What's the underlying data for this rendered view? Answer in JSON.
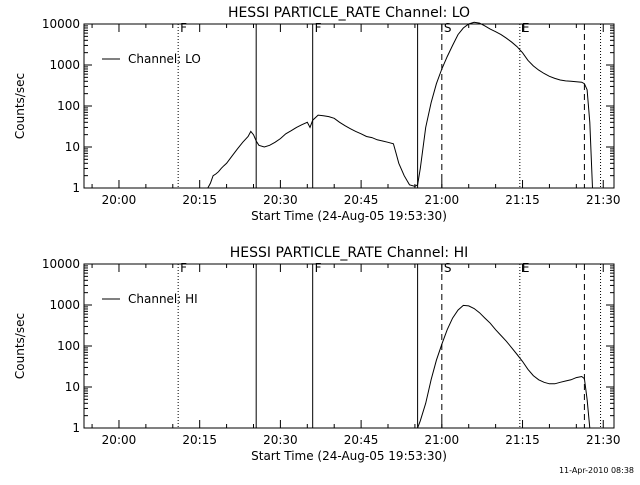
{
  "timestamp": "11-Apr-2010 08:38",
  "chart_data": [
    {
      "type": "line",
      "title": "HESSI PARTICLE_RATE Channel: LO",
      "xlabel": "Start Time (24-Aug-05 19:53:30)",
      "ylabel": "Counts/sec",
      "y_scale": "log",
      "xlim": [
        "19:53:30",
        "21:32:00"
      ],
      "ylim": [
        1,
        10000
      ],
      "x_ticks": [
        "20:00",
        "20:15",
        "20:30",
        "20:45",
        "21:00",
        "21:15",
        "21:30"
      ],
      "y_ticks": [
        "1",
        "10",
        "100",
        "1000",
        "10000"
      ],
      "legend": {
        "position": "top-left",
        "entries": [
          "Channel: LO"
        ]
      },
      "markers": [
        {
          "label": "F",
          "time": "20:11:00",
          "style": "dotted"
        },
        {
          "label": "",
          "time": "20:25:30",
          "style": "solid"
        },
        {
          "label": "F",
          "time": "20:36:00",
          "style": "solid"
        },
        {
          "label": "",
          "time": "20:55:30",
          "style": "solid"
        },
        {
          "label": "S",
          "time": "21:00:00",
          "style": "dashed"
        },
        {
          "label": "E",
          "time": "21:14:30",
          "style": "dotted"
        },
        {
          "label": "",
          "time": "21:26:30",
          "style": "dashed"
        },
        {
          "label": "",
          "time": "21:29:30",
          "style": "dotted"
        }
      ],
      "series": [
        {
          "name": "Channel: LO",
          "points": [
            [
              "20:16:30",
              1
            ],
            [
              "20:17:00",
              1.3
            ],
            [
              "20:17:30",
              2
            ],
            [
              "20:18:00",
              2.2
            ],
            [
              "20:18:30",
              2.5
            ],
            [
              "20:19:00",
              3
            ],
            [
              "20:19:30",
              3.5
            ],
            [
              "20:20:00",
              4
            ],
            [
              "20:21:00",
              6
            ],
            [
              "20:22:00",
              9
            ],
            [
              "20:23:00",
              13
            ],
            [
              "20:24:00",
              18
            ],
            [
              "20:24:30",
              24
            ],
            [
              "20:25:00",
              20
            ],
            [
              "20:25:30",
              14
            ],
            [
              "20:26:00",
              11
            ],
            [
              "20:27:00",
              10
            ],
            [
              "20:28:00",
              11
            ],
            [
              "20:29:00",
              13
            ],
            [
              "20:30:00",
              16
            ],
            [
              "20:31:00",
              21
            ],
            [
              "20:32:00",
              25
            ],
            [
              "20:33:00",
              30
            ],
            [
              "20:34:00",
              35
            ],
            [
              "20:35:00",
              40
            ],
            [
              "20:35:30",
              30
            ],
            [
              "20:36:00",
              45
            ],
            [
              "20:37:00",
              60
            ],
            [
              "20:38:00",
              58
            ],
            [
              "20:39:00",
              55
            ],
            [
              "20:40:00",
              50
            ],
            [
              "20:41:00",
              40
            ],
            [
              "20:42:00",
              33
            ],
            [
              "20:43:00",
              28
            ],
            [
              "20:44:00",
              24
            ],
            [
              "20:45:00",
              21
            ],
            [
              "20:46:00",
              18
            ],
            [
              "20:47:00",
              17
            ],
            [
              "20:48:00",
              15
            ],
            [
              "20:49:00",
              14
            ],
            [
              "20:50:00",
              13
            ],
            [
              "20:51:00",
              12
            ],
            [
              "20:51:30",
              7
            ],
            [
              "20:52:00",
              4
            ],
            [
              "20:53:00",
              2
            ],
            [
              "20:54:00",
              1.2
            ],
            [
              "20:55:00",
              1.1
            ],
            [
              "20:55:30",
              1.2
            ],
            [
              "20:56:00",
              3
            ],
            [
              "20:57:00",
              30
            ],
            [
              "20:58:00",
              120
            ],
            [
              "20:59:00",
              350
            ],
            [
              "21:00:00",
              800
            ],
            [
              "21:01:00",
              1600
            ],
            [
              "21:02:00",
              3000
            ],
            [
              "21:03:00",
              5500
            ],
            [
              "21:04:00",
              8000
            ],
            [
              "21:05:00",
              10000
            ],
            [
              "21:06:00",
              11000
            ],
            [
              "21:07:00",
              10500
            ],
            [
              "21:08:00",
              9000
            ],
            [
              "21:09:00",
              7500
            ],
            [
              "21:10:00",
              6500
            ],
            [
              "21:11:00",
              5500
            ],
            [
              "21:12:00",
              4500
            ],
            [
              "21:13:00",
              3600
            ],
            [
              "21:14:00",
              2800
            ],
            [
              "21:15:00",
              2000
            ],
            [
              "21:16:00",
              1300
            ],
            [
              "21:17:00",
              950
            ],
            [
              "21:18:00",
              750
            ],
            [
              "21:19:00",
              620
            ],
            [
              "21:20:00",
              530
            ],
            [
              "21:21:00",
              470
            ],
            [
              "21:22:00",
              430
            ],
            [
              "21:23:00",
              410
            ],
            [
              "21:24:00",
              400
            ],
            [
              "21:25:00",
              390
            ],
            [
              "21:26:00",
              380
            ],
            [
              "21:26:30",
              350
            ],
            [
              "21:27:00",
              250
            ],
            [
              "21:27:30",
              40
            ],
            [
              "21:28:00",
              1
            ]
          ]
        }
      ]
    },
    {
      "type": "line",
      "title": "HESSI PARTICLE_RATE Channel: HI",
      "xlabel": "Start Time (24-Aug-05 19:53:30)",
      "ylabel": "Counts/sec",
      "y_scale": "log",
      "xlim": [
        "19:53:30",
        "21:32:00"
      ],
      "ylim": [
        1,
        10000
      ],
      "x_ticks": [
        "20:00",
        "20:15",
        "20:30",
        "20:45",
        "21:00",
        "21:15",
        "21:30"
      ],
      "y_ticks": [
        "1",
        "10",
        "100",
        "1000",
        "10000"
      ],
      "legend": {
        "position": "top-left",
        "entries": [
          "Channel: HI"
        ]
      },
      "markers": [
        {
          "label": "F",
          "time": "20:11:00",
          "style": "dotted"
        },
        {
          "label": "",
          "time": "20:25:30",
          "style": "solid"
        },
        {
          "label": "F",
          "time": "20:36:00",
          "style": "solid"
        },
        {
          "label": "",
          "time": "20:55:30",
          "style": "solid"
        },
        {
          "label": "S",
          "time": "21:00:00",
          "style": "dashed"
        },
        {
          "label": "E",
          "time": "21:14:30",
          "style": "dotted"
        },
        {
          "label": "",
          "time": "21:26:30",
          "style": "dashed"
        },
        {
          "label": "",
          "time": "21:29:30",
          "style": "dotted"
        }
      ],
      "series": [
        {
          "name": "Channel: HI",
          "points": [
            [
              "20:55:30",
              1
            ],
            [
              "20:56:00",
              1.5
            ],
            [
              "20:57:00",
              4
            ],
            [
              "20:58:00",
              15
            ],
            [
              "20:59:00",
              45
            ],
            [
              "21:00:00",
              110
            ],
            [
              "21:01:00",
              250
            ],
            [
              "21:02:00",
              480
            ],
            [
              "21:03:00",
              750
            ],
            [
              "21:04:00",
              980
            ],
            [
              "21:05:00",
              950
            ],
            [
              "21:06:00",
              820
            ],
            [
              "21:07:00",
              650
            ],
            [
              "21:08:00",
              480
            ],
            [
              "21:09:00",
              360
            ],
            [
              "21:10:00",
              250
            ],
            [
              "21:11:00",
              180
            ],
            [
              "21:12:00",
              130
            ],
            [
              "21:13:00",
              90
            ],
            [
              "21:14:00",
              62
            ],
            [
              "21:15:00",
              42
            ],
            [
              "21:16:00",
              27
            ],
            [
              "21:17:00",
              19
            ],
            [
              "21:18:00",
              15
            ],
            [
              "21:19:00",
              13
            ],
            [
              "21:20:00",
              12
            ],
            [
              "21:21:00",
              12
            ],
            [
              "21:22:00",
              13
            ],
            [
              "21:23:00",
              14
            ],
            [
              "21:24:00",
              15
            ],
            [
              "21:25:00",
              17
            ],
            [
              "21:26:00",
              18
            ],
            [
              "21:26:30",
              16
            ],
            [
              "21:27:00",
              5
            ],
            [
              "21:27:30",
              1
            ]
          ]
        }
      ]
    }
  ]
}
